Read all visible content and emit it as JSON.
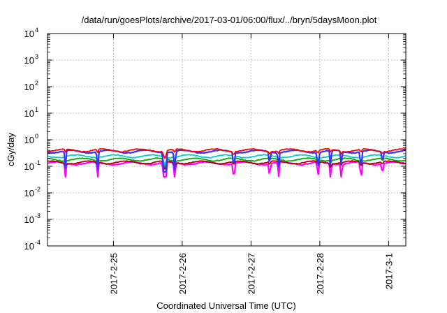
{
  "chart_data": {
    "type": "line",
    "title": "/data/run/goesPlots/archive/2017-03-01/06:00/flux/../bryn/5daysMoon.plot",
    "xlabel": "Coordinated Universal Time (UTC)",
    "ylabel": "cGy/day",
    "yscale": "log",
    "ylim": [
      0.0001,
      10000
    ],
    "y_ticks": [
      {
        "base": "10",
        "exp": "-4"
      },
      {
        "base": "10",
        "exp": "-3"
      },
      {
        "base": "10",
        "exp": "-2"
      },
      {
        "base": "10",
        "exp": "-1"
      },
      {
        "base": "10",
        "exp": "0"
      },
      {
        "base": "10",
        "exp": "1"
      },
      {
        "base": "10",
        "exp": "2"
      },
      {
        "base": "10",
        "exp": "3"
      },
      {
        "base": "10",
        "exp": "4"
      }
    ],
    "xlim": [
      "2017-02-24 01:00",
      "2017-03-01 06:00"
    ],
    "x_ticks": [
      "2017-2-25",
      "2017-2-26",
      "2017-2-27",
      "2017-2-28",
      "2017-3-1"
    ],
    "grid": true,
    "series_colors": [
      "#ff00ff",
      "#aa0000",
      "#00aa00",
      "#00cccc",
      "#3333ff",
      "#ff0000"
    ],
    "series": [
      {
        "color": "#ff00ff",
        "typical": 0.13,
        "min": 0.04
      },
      {
        "color": "#aa0000",
        "typical": 0.14
      },
      {
        "color": "#00aa00",
        "typical": 0.18
      },
      {
        "color": "#00cccc",
        "typical": 0.24
      },
      {
        "color": "#3333ff",
        "typical": 0.36,
        "min": 0.06
      },
      {
        "color": "#ff0000",
        "typical": 0.4
      }
    ]
  }
}
